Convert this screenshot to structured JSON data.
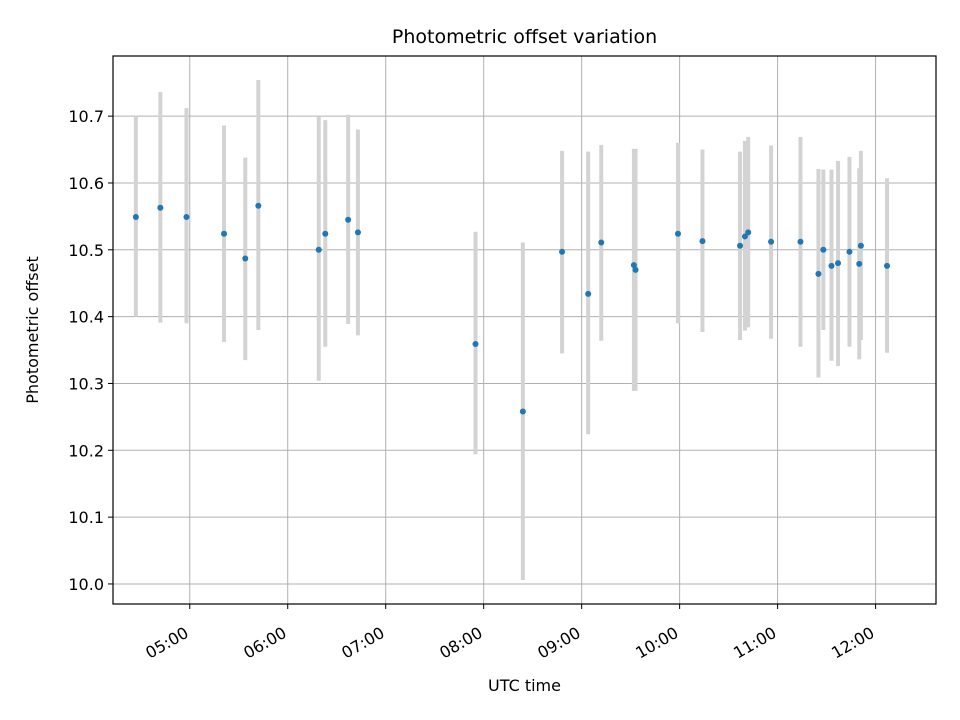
{
  "chart_data": {
    "type": "scatter",
    "title": "Photometric offset variation",
    "xlabel": "UTC time",
    "ylabel": "Photometric offset",
    "xlim": [
      "04:13",
      "12:37"
    ],
    "ylim": [
      9.97,
      10.79
    ],
    "x_ticks": [
      "05:00",
      "06:00",
      "07:00",
      "08:00",
      "09:00",
      "10:00",
      "11:00",
      "12:00"
    ],
    "y_ticks": [
      10.0,
      10.1,
      10.2,
      10.3,
      10.4,
      10.5,
      10.6,
      10.7
    ],
    "grid": true,
    "point_color": "#1f77b4",
    "errorbar_color": "#d3d3d3",
    "points": [
      {
        "x": "04:27",
        "y": 10.549,
        "lo": 10.4,
        "hi": 10.7
      },
      {
        "x": "04:42",
        "y": 10.563,
        "lo": 10.391,
        "hi": 10.736
      },
      {
        "x": "04:58",
        "y": 10.549,
        "lo": 10.39,
        "hi": 10.712
      },
      {
        "x": "05:21",
        "y": 10.524,
        "lo": 10.362,
        "hi": 10.686
      },
      {
        "x": "05:34",
        "y": 10.487,
        "lo": 10.335,
        "hi": 10.638
      },
      {
        "x": "05:42",
        "y": 10.566,
        "lo": 10.38,
        "hi": 10.754
      },
      {
        "x": "06:19",
        "y": 10.5,
        "lo": 10.304,
        "hi": 10.699
      },
      {
        "x": "06:23",
        "y": 10.524,
        "lo": 10.355,
        "hi": 10.694
      },
      {
        "x": "06:37",
        "y": 10.545,
        "lo": 10.389,
        "hi": 10.702
      },
      {
        "x": "06:43",
        "y": 10.526,
        "lo": 10.372,
        "hi": 10.68
      },
      {
        "x": "07:55",
        "y": 10.359,
        "lo": 10.194,
        "hi": 10.527
      },
      {
        "x": "08:24",
        "y": 10.258,
        "lo": 10.006,
        "hi": 10.511
      },
      {
        "x": "08:48",
        "y": 10.497,
        "lo": 10.345,
        "hi": 10.648
      },
      {
        "x": "09:04",
        "y": 10.434,
        "lo": 10.224,
        "hi": 10.647
      },
      {
        "x": "09:12",
        "y": 10.511,
        "lo": 10.364,
        "hi": 10.657
      },
      {
        "x": "09:32",
        "y": 10.477,
        "lo": 10.289,
        "hi": 10.651
      },
      {
        "x": "09:33",
        "y": 10.47,
        "lo": 10.289,
        "hi": 10.651
      },
      {
        "x": "09:59",
        "y": 10.524,
        "lo": 10.39,
        "hi": 10.66
      },
      {
        "x": "10:14",
        "y": 10.513,
        "lo": 10.377,
        "hi": 10.65
      },
      {
        "x": "10:37",
        "y": 10.506,
        "lo": 10.365,
        "hi": 10.647
      },
      {
        "x": "10:40",
        "y": 10.52,
        "lo": 10.379,
        "hi": 10.663
      },
      {
        "x": "10:42",
        "y": 10.526,
        "lo": 10.384,
        "hi": 10.669
      },
      {
        "x": "10:56",
        "y": 10.512,
        "lo": 10.367,
        "hi": 10.656
      },
      {
        "x": "11:14",
        "y": 10.512,
        "lo": 10.355,
        "hi": 10.669
      },
      {
        "x": "11:25",
        "y": 10.464,
        "lo": 10.309,
        "hi": 10.621
      },
      {
        "x": "11:28",
        "y": 10.5,
        "lo": 10.38,
        "hi": 10.62
      },
      {
        "x": "11:33",
        "y": 10.476,
        "lo": 10.334,
        "hi": 10.62
      },
      {
        "x": "11:37",
        "y": 10.48,
        "lo": 10.326,
        "hi": 10.633
      },
      {
        "x": "11:44",
        "y": 10.497,
        "lo": 10.355,
        "hi": 10.639
      },
      {
        "x": "11:50",
        "y": 10.479,
        "lo": 10.336,
        "hi": 10.622
      },
      {
        "x": "11:51",
        "y": 10.506,
        "lo": 10.365,
        "hi": 10.648
      },
      {
        "x": "12:07",
        "y": 10.476,
        "lo": 10.346,
        "hi": 10.607
      }
    ]
  }
}
